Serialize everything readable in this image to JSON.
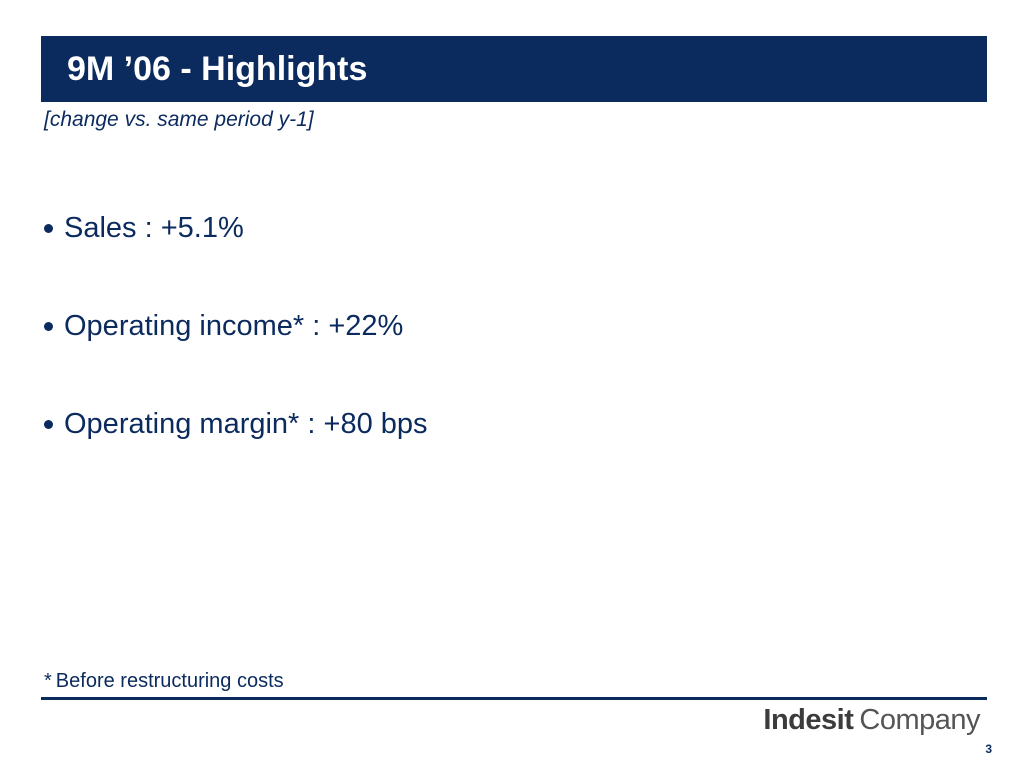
{
  "slide": {
    "title": "9M ’06 - Highlights",
    "subtitle": "[change vs. same period y-1]",
    "bullets": [
      {
        "text": "Sales : +5.1%"
      },
      {
        "text": "Operating income* : +22%"
      },
      {
        "text": "Operating margin* : +80 bps"
      }
    ],
    "footnote": {
      "mark": "*",
      "text": "Before restructuring costs"
    },
    "logo": {
      "bold_part": "Indesit",
      "light_part": "Company"
    },
    "page_number": "3"
  },
  "colors": {
    "brand_navy": "#0b2a5e",
    "logo_gray": "#4a4a4a"
  }
}
